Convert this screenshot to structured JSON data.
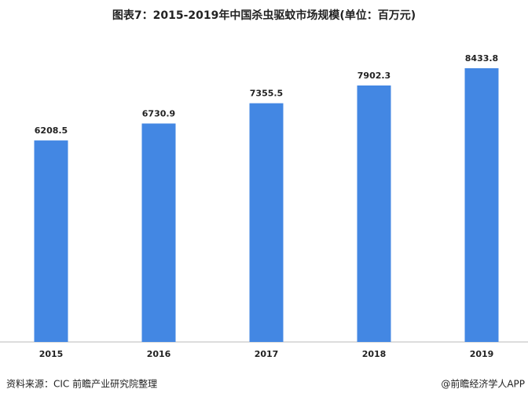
{
  "chart_data": {
    "type": "bar",
    "title": "图表7：2015-2019年中国杀虫驱蚊市场规模(单位：百万元)",
    "categories": [
      "2015",
      "2016",
      "2017",
      "2018",
      "2019"
    ],
    "values": [
      6208.5,
      6730.9,
      7355.5,
      7902.3,
      8433.8
    ],
    "color": "#4387e3"
  },
  "footer": {
    "source": "资料来源：CIC 前瞻产业研究院整理",
    "credit": "@前瞻经济学人APP"
  }
}
